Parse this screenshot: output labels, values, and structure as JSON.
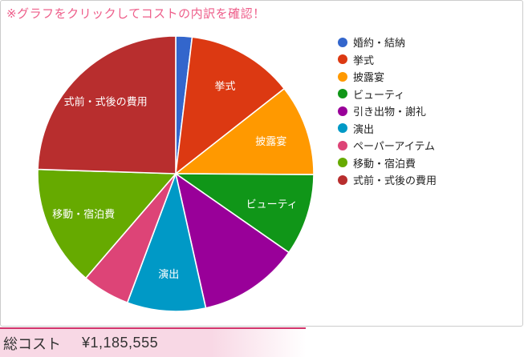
{
  "note": "※グラフをクリックしてコストの内訳を確認！",
  "total": {
    "label": "総コスト",
    "value": "¥1,185,555"
  },
  "accent_colors": {
    "note_pink": "#ee5e8a",
    "divider_crimson": "#d1346b",
    "total_bar_pink": "#f8d8e5",
    "box_border_gray": "#cccccc",
    "legend_text": "#222222",
    "total_text": "#333333",
    "slice_label_text": "#ffffff"
  },
  "chart_data": {
    "type": "pie",
    "title": "",
    "legend_position": "right",
    "start_angle_deg": 0,
    "direction": "clockwise",
    "value_unit": "percent (estimated from measured slice angles; only labels and total shown on screen)",
    "slices": [
      {
        "label": "婚約・結納",
        "percent": 1.9,
        "color": "#3366cc",
        "slice_label_visible": false
      },
      {
        "label": "挙式",
        "percent": 12.5,
        "color": "#dc3912",
        "slice_label_visible": true
      },
      {
        "label": "披露宴",
        "percent": 10.7,
        "color": "#ff9900",
        "slice_label_visible": true
      },
      {
        "label": "ビューティ",
        "percent": 9.6,
        "color": "#109618",
        "slice_label_visible": true
      },
      {
        "label": "引き出物・謝礼",
        "percent": 11.8,
        "color": "#990099",
        "slice_label_visible": false
      },
      {
        "label": "演出",
        "percent": 9.2,
        "color": "#0099c6",
        "slice_label_visible": true
      },
      {
        "label": "ペーパーアイテム",
        "percent": 5.6,
        "color": "#dd4477",
        "slice_label_visible": false
      },
      {
        "label": "移動・宿泊費",
        "percent": 14.2,
        "color": "#66aa00",
        "slice_label_visible": true
      },
      {
        "label": "式前・式後の費用",
        "percent": 24.5,
        "color": "#b82e2e",
        "slice_label_visible": true
      }
    ]
  }
}
